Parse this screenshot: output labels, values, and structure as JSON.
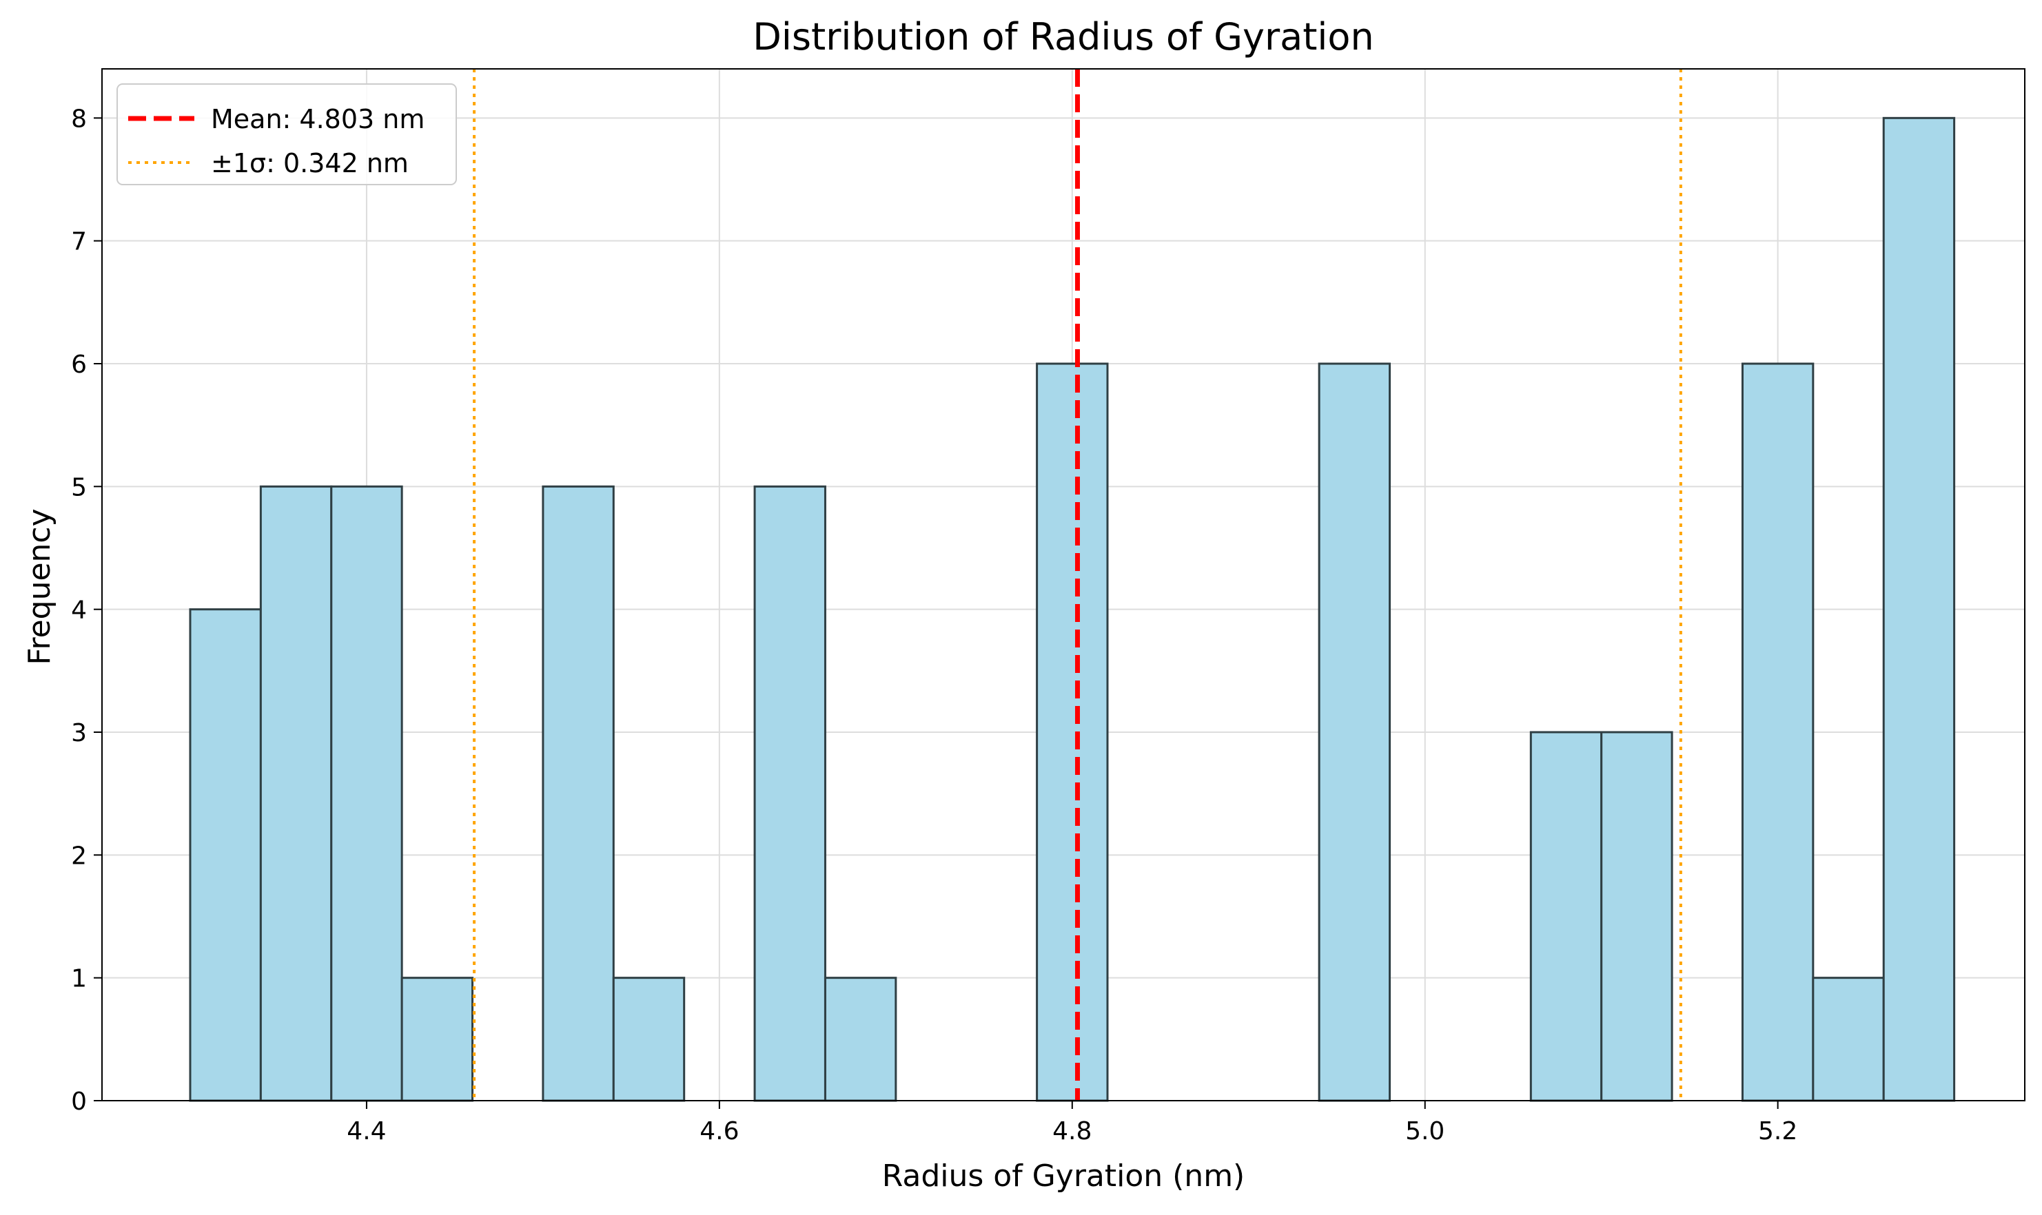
{
  "chart_data": {
    "type": "bar",
    "subtype": "histogram",
    "title": "Distribution of Radius of Gyration",
    "xlabel": "Radius of Gyration (nm)",
    "ylabel": "Frequency",
    "xlim": [
      4.25,
      5.34
    ],
    "ylim": [
      0,
      8.4
    ],
    "xticks": [
      {
        "value": 4.4,
        "label": "4.4"
      },
      {
        "value": 4.6,
        "label": "4.6"
      },
      {
        "value": 4.8,
        "label": "4.8"
      },
      {
        "value": 5.0,
        "label": "5.0"
      },
      {
        "value": 5.2,
        "label": "5.2"
      }
    ],
    "yticks": [
      {
        "value": 0,
        "label": "0"
      },
      {
        "value": 1,
        "label": "1"
      },
      {
        "value": 2,
        "label": "2"
      },
      {
        "value": 3,
        "label": "3"
      },
      {
        "value": 4,
        "label": "4"
      },
      {
        "value": 5,
        "label": "5"
      },
      {
        "value": 6,
        "label": "6"
      },
      {
        "value": 7,
        "label": "7"
      },
      {
        "value": 8,
        "label": "8"
      }
    ],
    "bins": {
      "start": 4.3,
      "width": 0.04,
      "counts": [
        4,
        5,
        5,
        1,
        0,
        5,
        1,
        0,
        5,
        1,
        0,
        0,
        6,
        0,
        0,
        0,
        6,
        0,
        0,
        3,
        3,
        0,
        6,
        1,
        8
      ]
    },
    "bar_color": "#a8d8ea",
    "bar_edge_color": "#2f3f44",
    "grid": true,
    "legend": {
      "placement": "top-left",
      "entries": [
        {
          "label": "Mean: 4.803 nm",
          "color": "#ff0000",
          "style": "dashed"
        },
        {
          "label": "±1σ: 0.342 nm",
          "color": "#ffa500",
          "style": "dotted"
        }
      ]
    },
    "reference_lines": [
      {
        "name": "mean",
        "x": 4.803,
        "color": "#ff0000",
        "style": "dashed"
      },
      {
        "name": "minus-1-sigma",
        "x": 4.461,
        "color": "#ffa500",
        "style": "dotted"
      },
      {
        "name": "plus-1-sigma",
        "x": 5.145,
        "color": "#ffa500",
        "style": "dotted"
      }
    ]
  }
}
